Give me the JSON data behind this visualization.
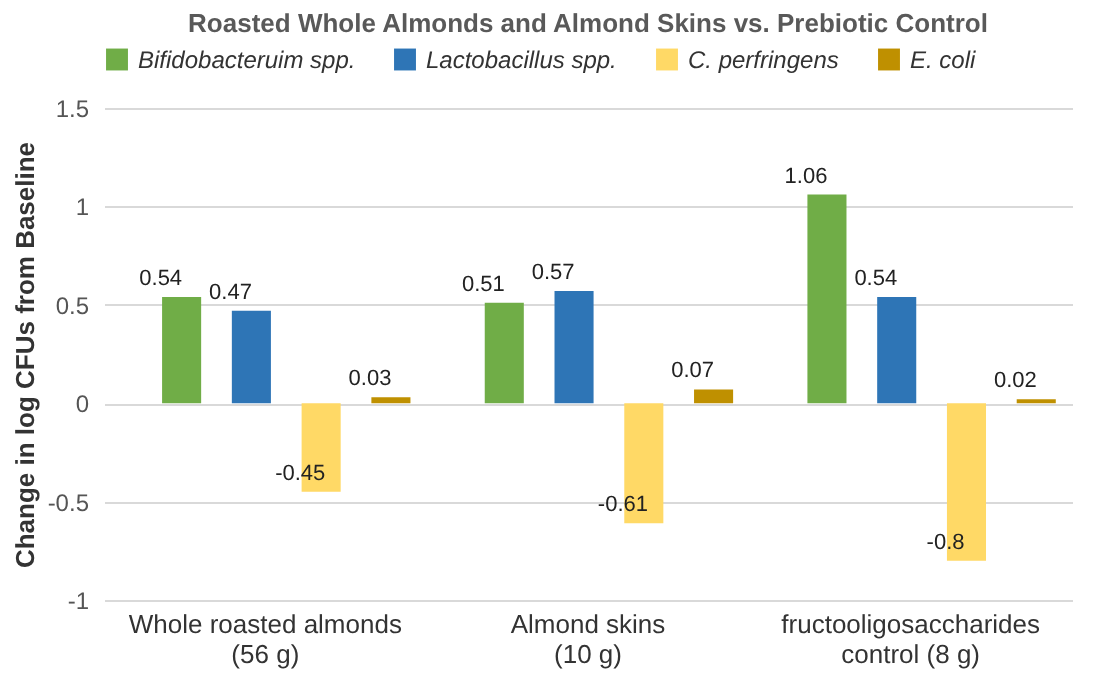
{
  "chart_data": {
    "type": "bar",
    "title": "Roasted Whole Almonds and Almond Skins vs. Prebiotic Control",
    "ylabel": "Change in log CFUs from Baseline",
    "categories": [
      "Whole roasted almonds (56 g)",
      "Almond skins (10 g)",
      "fructooligosaccharides control (8 g)"
    ],
    "series": [
      {
        "name": "Bifidobacteruim spp.",
        "color": "#70ad47",
        "values": [
          0.54,
          0.51,
          1.06
        ]
      },
      {
        "name": "Lactobacillus spp.",
        "color": "#2e75b6",
        "values": [
          0.47,
          0.57,
          0.54
        ]
      },
      {
        "name": "C. perfringens",
        "color": "#ffd966",
        "values": [
          -0.45,
          -0.61,
          -0.8
        ]
      },
      {
        "name": "E. coli",
        "color": "#bf9000",
        "values": [
          0.03,
          0.07,
          0.02
        ]
      }
    ],
    "ylim": [
      -1,
      1.5
    ],
    "yticks": [
      {
        "value": -1,
        "label": "-1"
      },
      {
        "value": -0.5,
        "label": "-0.5"
      },
      {
        "value": 0,
        "label": "0"
      },
      {
        "value": 0.5,
        "label": "0.5"
      },
      {
        "value": 1,
        "label": "1"
      },
      {
        "value": 1.5,
        "label": "1.5"
      }
    ],
    "grid": "y",
    "legend": "top",
    "data_labels": true
  }
}
